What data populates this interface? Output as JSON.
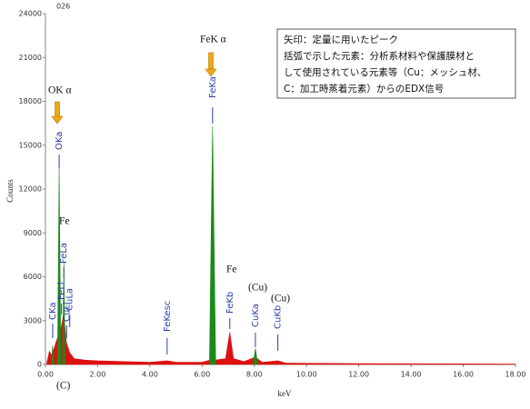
{
  "chart_data": {
    "type": "area",
    "label": "026",
    "x_label": "keV",
    "y_label": "Counts",
    "xlim": [
      0,
      18
    ],
    "ylim": [
      0,
      24000
    ],
    "xticks": [
      {
        "value": 0,
        "label": "0.00"
      },
      {
        "value": 2,
        "label": "2.00"
      },
      {
        "value": 4,
        "label": "4.00"
      },
      {
        "value": 6,
        "label": "6.00"
      },
      {
        "value": 8,
        "label": "8.00"
      },
      {
        "value": 10,
        "label": "10.00"
      },
      {
        "value": 12,
        "label": "12.00"
      },
      {
        "value": 14,
        "label": "14.00"
      },
      {
        "value": 16,
        "label": "16.00"
      },
      {
        "value": 18,
        "label": "18.00"
      }
    ],
    "yticks": [
      0,
      3000,
      6000,
      9000,
      12000,
      15000,
      18000,
      21000,
      24000
    ],
    "series": [
      {
        "color": "#dd1111",
        "x": [
          0.05,
          0.15,
          0.25,
          0.4,
          0.5,
          0.6,
          0.7,
          0.8,
          0.93,
          1.1,
          1.5,
          2,
          3,
          4,
          4.66,
          5,
          6,
          6.3,
          6.5,
          6.9,
          7.06,
          7.2,
          7.6,
          8.04,
          8.3,
          8.9,
          9.2,
          10,
          12,
          14,
          16,
          18
        ],
        "values": [
          100,
          900,
          600,
          1500,
          2000,
          2500,
          3500,
          1500,
          800,
          400,
          300,
          250,
          200,
          150,
          250,
          150,
          150,
          300,
          300,
          400,
          2200,
          400,
          200,
          500,
          150,
          250,
          100,
          80,
          60,
          50,
          40,
          30
        ]
      },
      {
        "color": "#1a8a1a",
        "x": [
          0.22,
          0.277,
          0.33,
          0.4,
          0.46,
          0.525,
          0.59,
          0.63,
          0.66,
          0.705,
          0.75,
          3,
          6.28,
          6.4,
          6.52,
          7.5,
          7.95,
          8.04,
          8.13
        ],
        "values": [
          0,
          1300,
          0,
          null,
          0,
          13500,
          0,
          null,
          0,
          7000,
          0,
          null,
          0,
          16300,
          0,
          null,
          0,
          1100,
          0
        ]
      }
    ],
    "peak_labels": [
      {
        "label": "CKa",
        "x": 0.277
      },
      {
        "label": "OKa",
        "x": 0.525
      },
      {
        "label": "FeLa",
        "x": 0.705
      },
      {
        "label": "FeLl",
        "x": 0.615
      },
      {
        "label": "CuLa",
        "x": 0.93
      },
      {
        "label": "CuLl",
        "x": 0.81
      },
      {
        "label": "FeKesc",
        "x": 4.66
      },
      {
        "label": "FeKa",
        "x": 6.4
      },
      {
        "label": "FeKb",
        "x": 7.06
      },
      {
        "label": "CuKa",
        "x": 8.04
      },
      {
        "label": "CuKb",
        "x": 8.9
      }
    ],
    "annotations": [
      "FeK α",
      "OK α",
      "Fe",
      "Fe",
      "(Cu)",
      "(Cu)",
      "(C)"
    ],
    "note": [
      "矢印：定量に用いたピーク",
      "括弧で示した元素：分析系材料や保護膜材と",
      "して使用されている元素等（Cu：メッシュ材、",
      "C：加工時蒸着元素）からのEDX信号"
    ]
  }
}
